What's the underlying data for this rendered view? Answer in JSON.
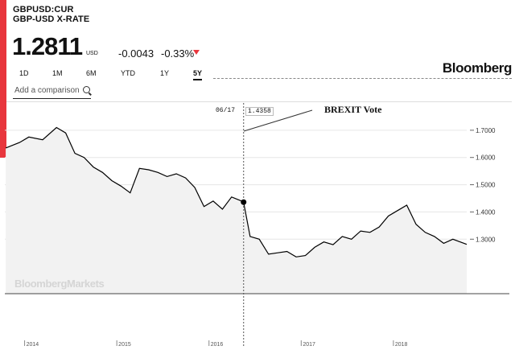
{
  "header": {
    "ticker": "GBPUSD:CUR",
    "name": "GBP-USD X-RATE",
    "price": "1.2811",
    "unit": "USD",
    "change": "-0.0043",
    "change_pct": "-0.33%",
    "change_direction": "down",
    "down_color": "#e8363d"
  },
  "tabs": [
    {
      "label": "1D",
      "active": false
    },
    {
      "label": "1M",
      "active": false
    },
    {
      "label": "6M",
      "active": false
    },
    {
      "label": "YTD",
      "active": false
    },
    {
      "label": "1Y",
      "active": false
    },
    {
      "label": "5Y",
      "active": true
    }
  ],
  "logo": "Bloomberg",
  "compare": {
    "placeholder": "Add a comparison",
    "icon": "search-icon"
  },
  "tooltip": {
    "date": "06/17",
    "value": "1.4358"
  },
  "annotation": "BREXIT Vote",
  "watermark": "BloombergMarkets",
  "chart_data": {
    "type": "area",
    "series": [
      {
        "x": [
          2013.9,
          2014.05,
          2014.15,
          2014.3,
          2014.45,
          2014.55,
          2014.65,
          2014.75,
          2014.85,
          2014.95,
          2015.05,
          2015.15,
          2015.25,
          2015.35,
          2015.45,
          2015.55,
          2015.65,
          2015.75,
          2015.85,
          2015.95,
          2016.05,
          2016.15,
          2016.25,
          2016.35,
          2016.46,
          2016.48,
          2016.55,
          2016.65,
          2016.75,
          2016.85,
          2016.95,
          2017.05,
          2017.15,
          2017.25,
          2017.35,
          2017.45,
          2017.55,
          2017.65,
          2017.75,
          2017.85,
          2017.95,
          2018.05,
          2018.15,
          2018.25,
          2018.35,
          2018.45,
          2018.55,
          2018.65,
          2018.75,
          2018.9
        ],
        "values": [
          1.635,
          1.655,
          1.675,
          1.665,
          1.71,
          1.69,
          1.615,
          1.6,
          1.565,
          1.545,
          1.515,
          1.495,
          1.47,
          1.56,
          1.555,
          1.545,
          1.53,
          1.54,
          1.525,
          1.49,
          1.42,
          1.44,
          1.41,
          1.455,
          1.44,
          1.436,
          1.31,
          1.3,
          1.245,
          1.25,
          1.255,
          1.235,
          1.24,
          1.27,
          1.29,
          1.28,
          1.31,
          1.3,
          1.33,
          1.325,
          1.345,
          1.385,
          1.405,
          1.425,
          1.355,
          1.325,
          1.31,
          1.285,
          1.3,
          1.281
        ]
      }
    ],
    "x_ticks": [
      "2014",
      "2015",
      "2016",
      "2017",
      "2018"
    ],
    "x_range": [
      2013.89,
      2018.9
    ],
    "y_ticks": [
      "1.3000",
      "1.4000",
      "1.5000",
      "1.6000",
      "1.7000"
    ],
    "y_range": [
      1.1,
      1.8
    ],
    "marker": {
      "x": 2016.48,
      "y": 1.436
    },
    "line_color": "#000000",
    "fill_color": "#f2f2f2"
  }
}
